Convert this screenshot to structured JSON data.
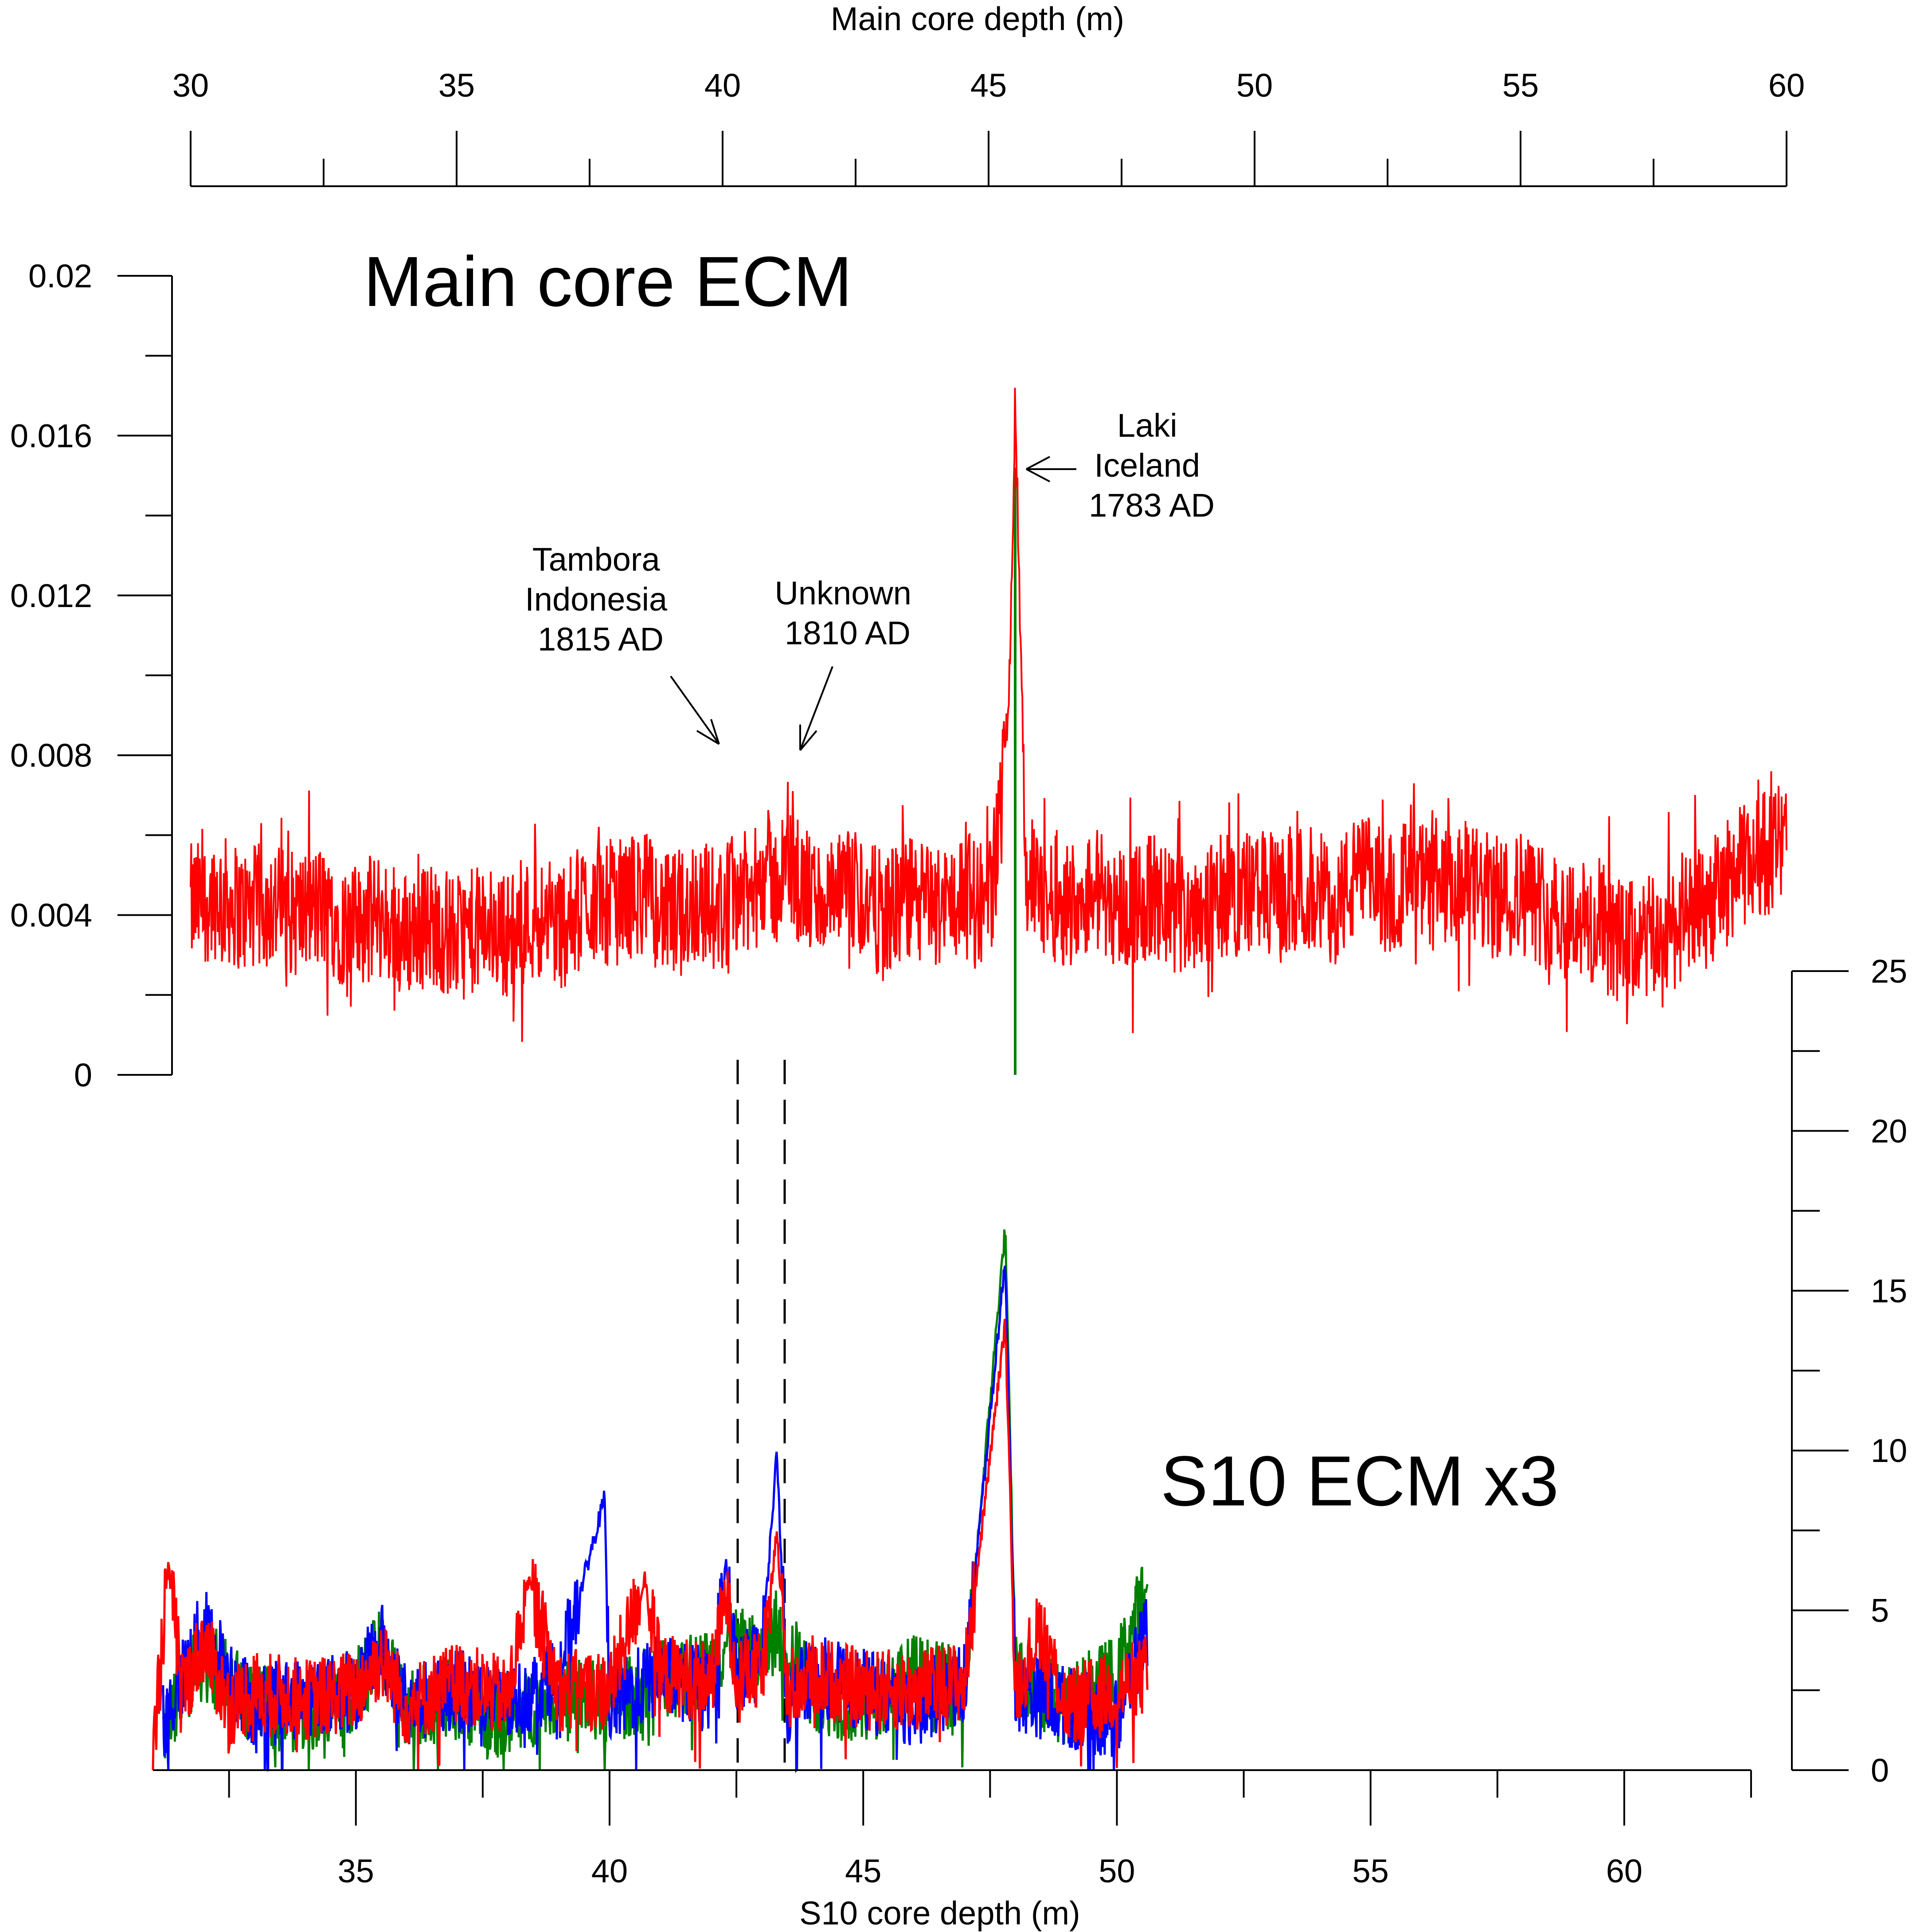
{
  "chart_data": [
    {
      "panel": "main-core",
      "type": "line",
      "title": "Main core ECM",
      "xlabel": "Main core depth (m)",
      "ylabel": "",
      "xlim": [
        30,
        60
      ],
      "ylim": [
        0,
        0.02
      ],
      "x_ticks": [
        30,
        35,
        40,
        45,
        50,
        55,
        60
      ],
      "x_tick_labels": [
        "30",
        "35",
        "40",
        "45",
        "50",
        "55",
        "60"
      ],
      "y_ticks": [
        0,
        0.004,
        0.008,
        0.012,
        0.016,
        0.02
      ],
      "y_tick_labels": [
        "0",
        "0.004",
        "0.008",
        "0.012",
        "0.016",
        "0.02"
      ],
      "series": [
        {
          "color": "#ff0000",
          "x": [
            30.0,
            30.5,
            31.0,
            31.5,
            32.0,
            32.5,
            33.0,
            33.5,
            34.0,
            34.5,
            35.0,
            35.5,
            36.0,
            36.5,
            37.0,
            37.5,
            38.0,
            38.5,
            39.0,
            39.5,
            40.0,
            40.3,
            40.5,
            40.8,
            41.0,
            41.2,
            41.5,
            42.0,
            42.5,
            43.0,
            43.5,
            44.0,
            44.5,
            45.0,
            45.2,
            45.4,
            45.5,
            45.6,
            45.7,
            46.0,
            46.5,
            47.0,
            47.5,
            48.0,
            48.5,
            49.0,
            49.5,
            50.0,
            50.5,
            51.0,
            51.5,
            52.0,
            52.5,
            53.0,
            53.5,
            54.0,
            54.5,
            55.0,
            55.5,
            56.0,
            56.5,
            57.0,
            57.5,
            58.0,
            58.5,
            59.0,
            59.5,
            60.0
          ],
          "y": [
            0.0042,
            0.0045,
            0.0041,
            0.0043,
            0.004,
            0.0042,
            0.0036,
            0.004,
            0.0035,
            0.0038,
            0.0034,
            0.0037,
            0.0035,
            0.004,
            0.0037,
            0.0044,
            0.0043,
            0.0046,
            0.0039,
            0.0044,
            0.0041,
            0.0048,
            0.0043,
            0.0052,
            0.0047,
            0.0053,
            0.0046,
            0.0043,
            0.0046,
            0.004,
            0.0044,
            0.0042,
            0.0045,
            0.0043,
            0.006,
            0.01,
            0.017,
            0.011,
            0.005,
            0.0045,
            0.0043,
            0.0047,
            0.0042,
            0.0044,
            0.004,
            0.0043,
            0.0045,
            0.0046,
            0.0044,
            0.0047,
            0.0043,
            0.005,
            0.0046,
            0.0049,
            0.0045,
            0.0048,
            0.0044,
            0.0046,
            0.0042,
            0.004,
            0.0035,
            0.0033,
            0.0034,
            0.0038,
            0.0042,
            0.005,
            0.0055,
            0.0058
          ]
        },
        {
          "color": "#008000",
          "x": [
            45.5,
            45.5
          ],
          "y": [
            0.0,
            0.0152
          ]
        }
      ],
      "annotations": [
        {
          "lines": [
            "Tambora",
            "Indonesia",
            "1815 AD"
          ],
          "x": 40.2,
          "y": 0.0082
        },
        {
          "lines": [
            "Unknown",
            "1810 AD"
          ],
          "x": 41.5,
          "y": 0.0082
        },
        {
          "lines": [
            "Laki",
            "Iceland",
            "1783 AD"
          ],
          "x": 45.7,
          "y": 0.0152
        }
      ]
    },
    {
      "panel": "s10-core",
      "type": "line",
      "title": "S10 ECM x3",
      "xlabel": "S10 core depth (m)",
      "ylabel": "",
      "xlim": [
        31.0,
        62.5
      ],
      "ylim": [
        0,
        25
      ],
      "x_ticks": [
        35,
        40,
        45,
        50,
        55,
        60
      ],
      "x_tick_labels": [
        "35",
        "40",
        "45",
        "50",
        "55",
        "60"
      ],
      "y_ticks": [
        0,
        5,
        10,
        15,
        20,
        25
      ],
      "y_tick_labels": [
        "0",
        "5",
        "10",
        "15",
        "20",
        "25"
      ],
      "series": [
        {
          "color": "#008000",
          "x": [
            31.2,
            32.0,
            33.0,
            34.0,
            35.0,
            35.5,
            36.0,
            37.0,
            38.0,
            39.0,
            40.0,
            41.0,
            42.0,
            42.3,
            43.0,
            43.3,
            44.0,
            45.0,
            46.0,
            47.0,
            47.8,
            48.0,
            49.0,
            50.0,
            50.6
          ],
          "y": [
            1.5,
            3.5,
            2.0,
            1.8,
            2.5,
            3.8,
            2.0,
            2.2,
            1.5,
            2.5,
            2.0,
            2.8,
            3.2,
            4.0,
            3.5,
            4.5,
            2.5,
            2.0,
            3.0,
            2.5,
            17.0,
            3.0,
            2.0,
            3.0,
            5.8
          ]
        },
        {
          "color": "#0000ff",
          "x": [
            31.2,
            32.0,
            32.5,
            33.0,
            34.0,
            35.0,
            35.5,
            36.0,
            37.0,
            38.0,
            39.0,
            39.9,
            40.0,
            41.0,
            42.0,
            42.3,
            42.5,
            43.0,
            43.3,
            43.5,
            44.0,
            45.0,
            46.0,
            47.0,
            47.8,
            48.0,
            49.0,
            50.0,
            50.6
          ],
          "y": [
            1.5,
            4.5,
            3.0,
            2.0,
            2.3,
            2.5,
            4.0,
            2.0,
            2.5,
            2.0,
            3.0,
            8.5,
            2.0,
            3.0,
            2.5,
            6.5,
            3.0,
            3.5,
            10.0,
            2.0,
            3.0,
            2.5,
            2.0,
            2.8,
            16.0,
            2.5,
            2.0,
            1.5,
            4.5
          ]
        },
        {
          "color": "#ff0000",
          "x": [
            31.0,
            31.3,
            31.6,
            32.0,
            32.5,
            33.0,
            34.0,
            35.0,
            35.5,
            36.0,
            37.0,
            38.0,
            38.4,
            39.0,
            40.0,
            40.7,
            41.0,
            42.0,
            42.3,
            42.5,
            43.0,
            43.3,
            43.5,
            44.0,
            45.0,
            46.0,
            47.0,
            47.8,
            48.0,
            48.5,
            49.0,
            50.0,
            50.6
          ],
          "y": [
            0.5,
            6.3,
            2.5,
            4.0,
            2.0,
            2.5,
            2.2,
            2.5,
            3.5,
            2.0,
            2.8,
            2.2,
            6.0,
            2.5,
            2.5,
            6.0,
            3.0,
            2.8,
            5.5,
            3.0,
            3.0,
            7.5,
            2.5,
            3.0,
            2.5,
            2.5,
            2.8,
            14.0,
            2.5,
            4.5,
            2.0,
            2.5,
            3.0
          ]
        }
      ]
    }
  ]
}
